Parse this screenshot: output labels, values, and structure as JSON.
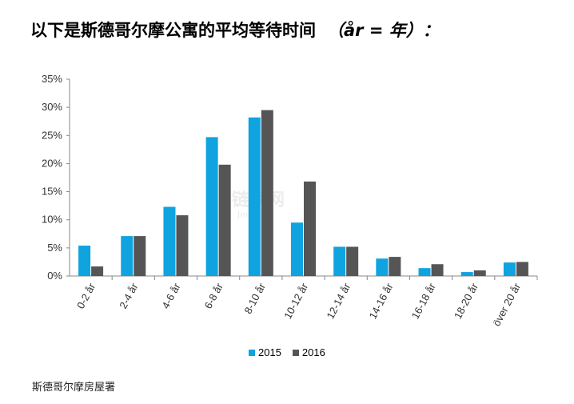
{
  "title": "以下是斯德哥尔摩公寓的平均等待时间",
  "unit_note": "（år = 年）：",
  "source": "斯德哥尔摩房屋署",
  "watermark": "链家网",
  "watermark_sub": "Jinabian",
  "colors": {
    "s2015": "#0fa3e0",
    "s2016": "#555555",
    "axis": "#888888",
    "text": "#333333"
  },
  "chart_data": {
    "type": "bar",
    "categories": [
      "0-2 år",
      "2-4 år",
      "4-6 år",
      "6-8 år",
      "8-10 år",
      "10-12 år",
      "12-14 år",
      "14-16 år",
      "16-18 år",
      "18-20 år",
      "över 20 år"
    ],
    "series": [
      {
        "name": "2015",
        "values": [
          5.4,
          7.1,
          12.3,
          24.7,
          28.2,
          9.5,
          5.2,
          3.1,
          1.4,
          0.7,
          2.4
        ]
      },
      {
        "name": "2016",
        "values": [
          1.7,
          7.1,
          10.8,
          19.8,
          29.5,
          16.8,
          5.2,
          3.4,
          2.1,
          1.0,
          2.5
        ]
      }
    ],
    "y_ticks": [
      "0%",
      "5%",
      "10%",
      "15%",
      "20%",
      "25%",
      "30%",
      "35%"
    ],
    "ylim": [
      0,
      35
    ],
    "xlabel": "",
    "ylabel": "",
    "legend": "bottom"
  }
}
